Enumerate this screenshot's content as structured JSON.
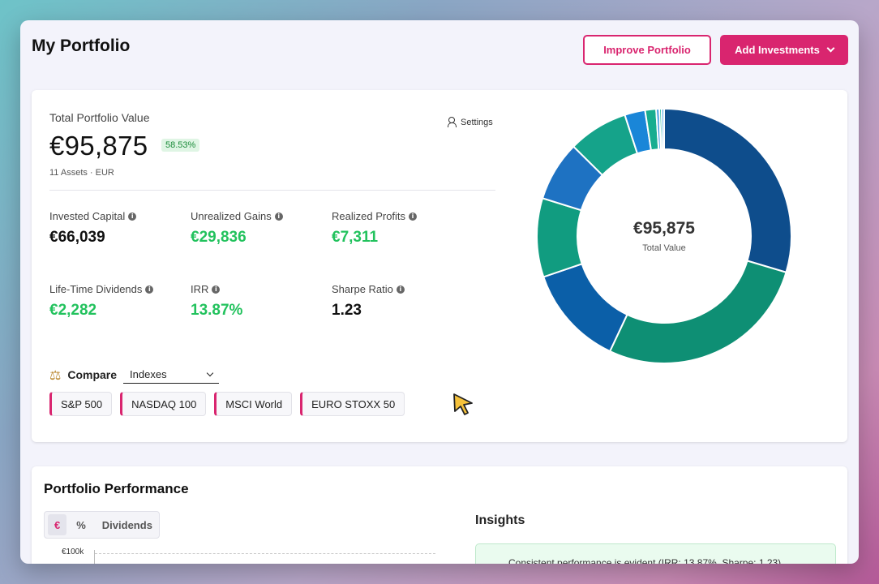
{
  "header": {
    "title": "My Portfolio",
    "improve_label": "Improve Portfolio",
    "add_label": "Add Investments"
  },
  "summary": {
    "total_label": "Total Portfolio Value",
    "settings_label": "Settings",
    "total_value": "€95,875",
    "total_change": "58.53%",
    "assets_sub": "11 Assets · EUR"
  },
  "metrics": [
    {
      "label": "Invested Capital",
      "value": "€66,039",
      "positive": false
    },
    {
      "label": "Unrealized Gains",
      "value": "€29,836",
      "positive": true
    },
    {
      "label": "Realized Profits",
      "value": "€7,311",
      "positive": true
    },
    {
      "label": "Life-Time Dividends",
      "value": "€2,282",
      "positive": true
    },
    {
      "label": "IRR",
      "value": "13.87%",
      "positive": true
    },
    {
      "label": "Sharpe Ratio",
      "value": "1.23",
      "positive": false
    }
  ],
  "compare": {
    "label": "Compare",
    "selected": "Indexes",
    "indexes": [
      "S&P 500",
      "NASDAQ 100",
      "MSCI World",
      "EURO STOXX 50"
    ]
  },
  "allocation": {
    "center_value": "€95,875",
    "center_label": "Total Value",
    "slices": [
      {
        "share": 29.6,
        "color": "#0e4d8c"
      },
      {
        "share": 27.4,
        "color": "#0e8f74"
      },
      {
        "share": 12.8,
        "color": "#0b5fa8"
      },
      {
        "share": 10.0,
        "color": "#119c80"
      },
      {
        "share": 7.6,
        "color": "#1e72c2"
      },
      {
        "share": 7.6,
        "color": "#15a38a"
      },
      {
        "share": 2.6,
        "color": "#1a86d8"
      },
      {
        "share": 1.4,
        "color": "#17ad90"
      },
      {
        "share": 0.4,
        "color": "#2b8fe0"
      },
      {
        "share": 0.3,
        "color": "#1db89a"
      },
      {
        "share": 0.3,
        "color": "#3399e6"
      }
    ]
  },
  "performance": {
    "title": "Portfolio Performance",
    "modes": [
      "€",
      "%",
      "Dividends"
    ],
    "active_mode": 0,
    "ytick": "€100k",
    "insights_title": "Insights",
    "insight_text": "Consistent performance is evident (IRR: 13.87%, Sharpe: 1.23)"
  },
  "colors": {
    "accent": "#d9256f",
    "positive": "#22c25d"
  }
}
